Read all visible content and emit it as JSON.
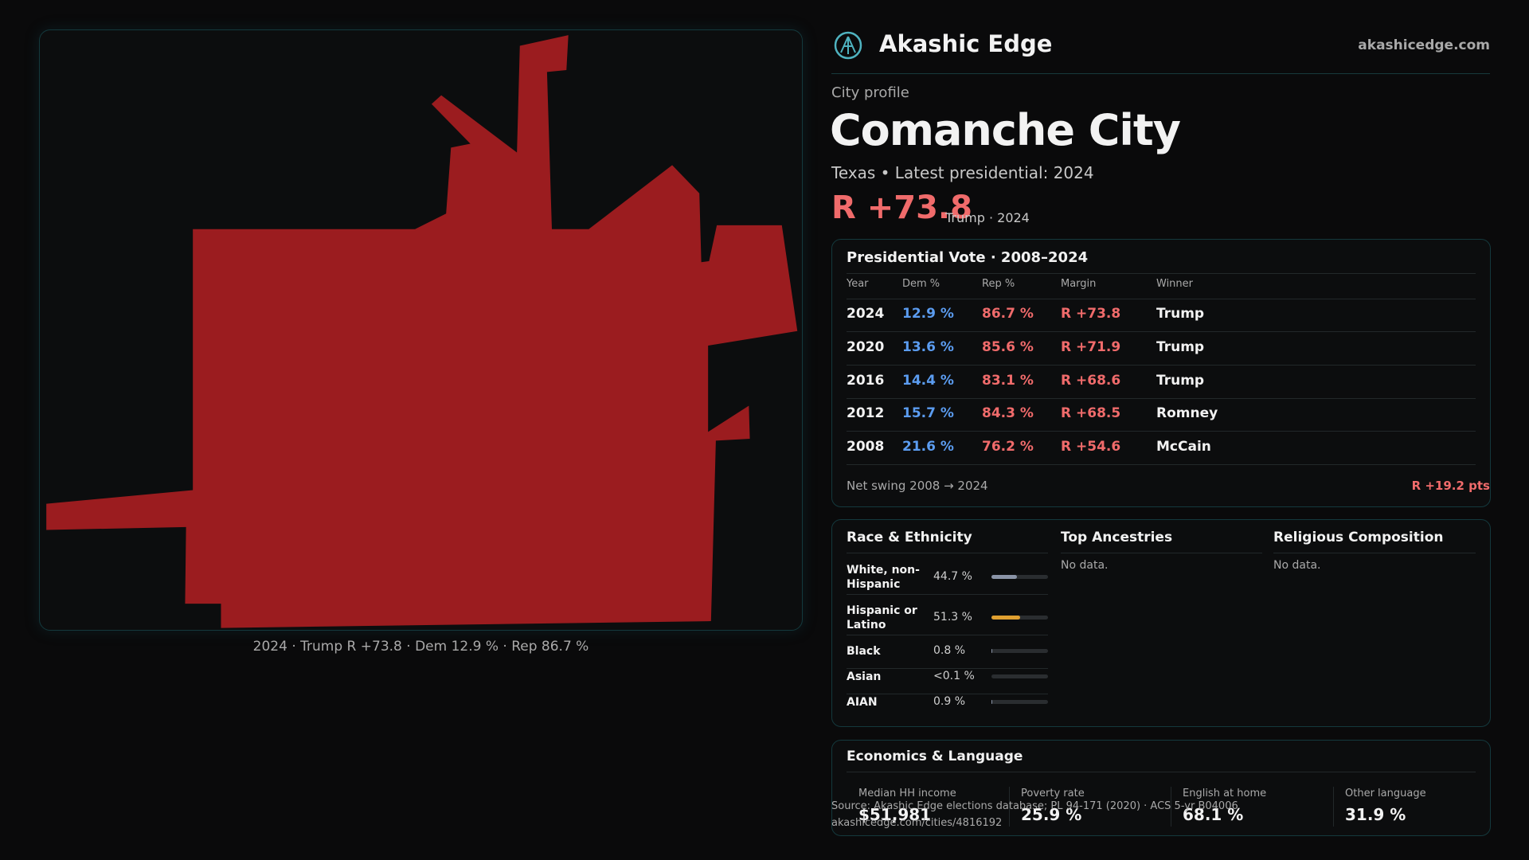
{
  "header": {
    "brand": "Akashic Edge",
    "site": "akashicedge.com"
  },
  "map": {
    "caption": "2024 · Trump R +73.8 · Dem 12.9 % · Rep 86.7 %"
  },
  "profile": {
    "kicker": "City profile",
    "title": "Comanche City",
    "subtitle": "Texas • Latest presidential: 2024",
    "margin": "R +73.8",
    "margin_note": "Trump · 2024"
  },
  "vote_table": {
    "title": "Presidential Vote · 2008–2024",
    "columns": [
      "Year",
      "Dem %",
      "Rep %",
      "Margin",
      "Winner"
    ],
    "rows": [
      [
        "2024",
        "12.9 %",
        "86.7 %",
        "R +73.8",
        "Trump"
      ],
      [
        "2020",
        "13.6 %",
        "85.6 %",
        "R +71.9",
        "Trump"
      ],
      [
        "2016",
        "14.4 %",
        "83.1 %",
        "R +68.6",
        "Trump"
      ],
      [
        "2012",
        "15.7 %",
        "84.3 %",
        "R +68.5",
        "Romney"
      ],
      [
        "2008",
        "21.6 %",
        "76.2 %",
        "R +54.6",
        "McCain"
      ]
    ],
    "swing_label": "Net swing 2008 → 2024",
    "swing_value": "R +19.2 pts"
  },
  "race": {
    "title": "Race & Ethnicity",
    "rows": [
      {
        "label": "White, non-Hispanic",
        "share": 44.7,
        "share_label": "44.7 %",
        "color": "#8a93a6"
      },
      {
        "label": "Hispanic or Latino",
        "share": 51.3,
        "share_label": "51.3 %",
        "color": "#e0a030"
      },
      {
        "label": "Black",
        "share": 0.8,
        "share_label": "0.8 %",
        "color": "#8a93a6"
      },
      {
        "label": "Asian",
        "share": 0.05,
        "share_label": "<0.1 %",
        "color": "#8a93a6"
      },
      {
        "label": "AIAN",
        "share": 0.9,
        "share_label": "0.9 %",
        "color": "#8a93a6"
      }
    ]
  },
  "ancestries": {
    "title": "Top Ancestries",
    "note": "No data."
  },
  "religion": {
    "title": "Religious Composition",
    "note": "No data."
  },
  "economics": {
    "title": "Economics & Language",
    "items": [
      {
        "label": "Median HH income",
        "value": "$51,981"
      },
      {
        "label": "Poverty rate",
        "value": "25.9 %"
      },
      {
        "label": "English at home",
        "value": "68.1 %"
      },
      {
        "label": "Other language",
        "value": "31.9 %"
      }
    ]
  },
  "source": {
    "text": "Source: Akashic Edge elections database; PL 94-171 (2020) · ACS 5-yr B04006",
    "url": "akashicedge.com/cities/4816192"
  }
}
